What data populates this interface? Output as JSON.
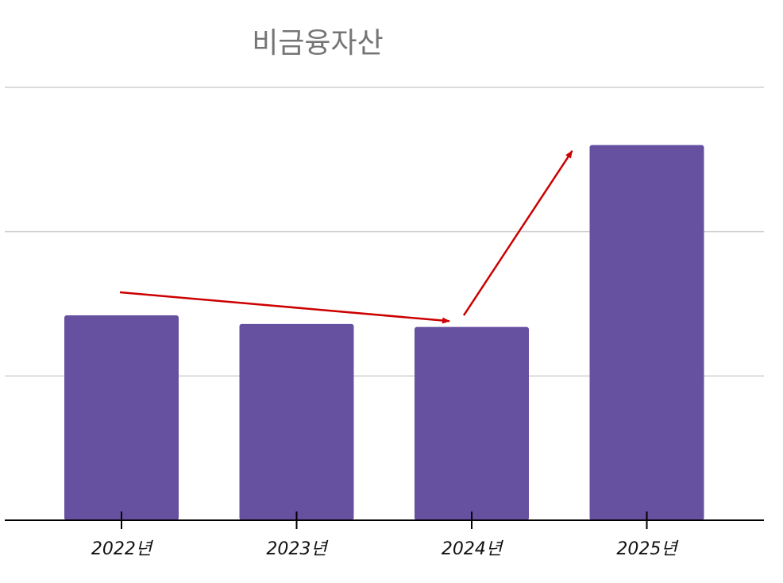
{
  "chart_data": {
    "type": "bar",
    "title": "비금융자산",
    "categories": [
      "2022년",
      "2023년",
      "2024년",
      "2025년"
    ],
    "values": [
      71,
      68,
      67,
      130
    ],
    "xlabel": "",
    "ylabel": "",
    "ylim": [
      0,
      150
    ],
    "grid": true,
    "legend": "none",
    "colors": {
      "bar": "#6650a0",
      "grid": "#cfcfcf",
      "axis": "#000000",
      "annotation_arrow": "#cc0000"
    },
    "annotations": [
      {
        "type": "arrow",
        "from": {
          "category": "2022년",
          "value": 79
        },
        "to": {
          "category": "2024년",
          "value": 69
        }
      },
      {
        "type": "arrow",
        "from": {
          "category": "2024년",
          "value": 71
        },
        "to": {
          "category": "2025년",
          "value": 128
        }
      }
    ]
  }
}
